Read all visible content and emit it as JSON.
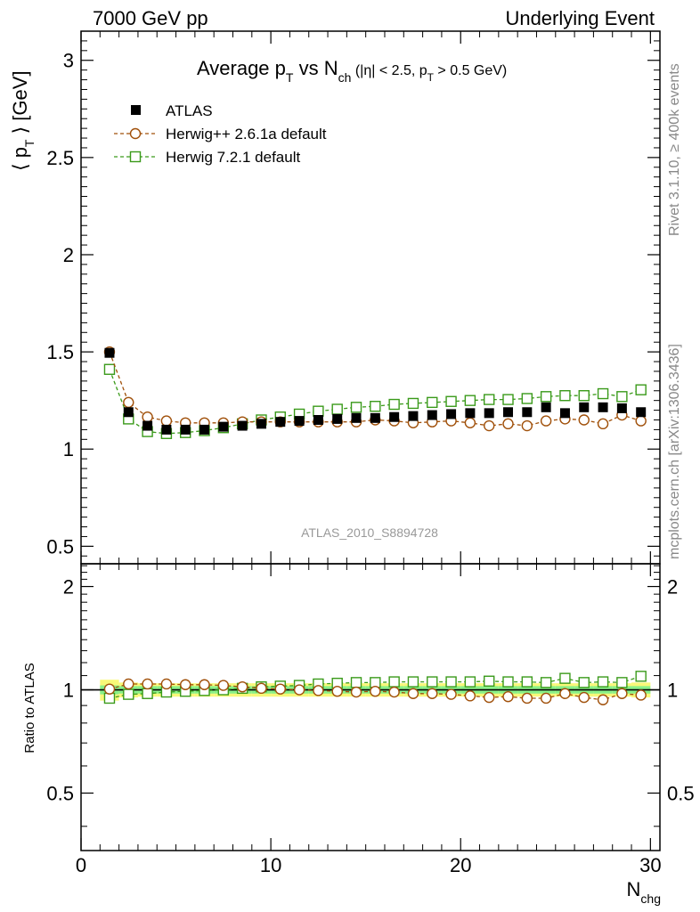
{
  "header": {
    "left": "7000 GeV pp",
    "right": "Underlying Event"
  },
  "side_labels": {
    "rivet": "Rivet 3.1.10, ≥ 400k events",
    "mcplots": "mcplots.cern.ch [arXiv:1306.3436]"
  },
  "watermark": "ATLAS_2010_S8894728",
  "colors": {
    "atlas": "#000000",
    "herwigpp": "#a0500a",
    "herwig7": "#3a9a1a",
    "band_inner": "#88f088",
    "band_outer": "#f8f878"
  },
  "chart_data": [
    {
      "type": "scatter",
      "title": "Average p_T vs N_ch (|η| < 2.5, p_T > 0.5 GeV)",
      "title_parts": {
        "a": "Average p",
        "a_sub": "T",
        "b": " vs N",
        "b_sub": "ch",
        "c": " (|η| < 2.5, p",
        "c_sub": "T",
        "d": " > 0.5 GeV)"
      },
      "ylabel_parts": {
        "open": "⟨ p",
        "sub": "T",
        "close": " ⟩ [GeV]"
      },
      "xlim": [
        0,
        30.5
      ],
      "ylim": [
        0.41,
        3.15
      ],
      "y_ticks": [
        0.5,
        1,
        1.5,
        2,
        2.5,
        3
      ],
      "y_tick_labels": [
        "0.5",
        "1",
        "1.5",
        "2",
        "2.5",
        "3"
      ],
      "legend_position": "top-left",
      "x": [
        1.5,
        2.5,
        3.5,
        4.5,
        5.5,
        6.5,
        7.5,
        8.5,
        9.5,
        10.5,
        11.5,
        12.5,
        13.5,
        14.5,
        15.5,
        16.5,
        17.5,
        18.5,
        19.5,
        20.5,
        21.5,
        22.5,
        23.5,
        24.5,
        25.5,
        26.5,
        27.5,
        28.5,
        29.5
      ],
      "series": [
        {
          "name": "ATLAS",
          "marker": "filled-square",
          "values": [
            1.495,
            1.19,
            1.12,
            1.1,
            1.1,
            1.1,
            1.115,
            1.12,
            1.13,
            1.14,
            1.145,
            1.15,
            1.155,
            1.16,
            1.16,
            1.165,
            1.17,
            1.175,
            1.18,
            1.185,
            1.185,
            1.19,
            1.19,
            1.215,
            1.185,
            1.215,
            1.215,
            1.21,
            1.19
          ]
        },
        {
          "name": "Herwig++ 2.6.1a default",
          "marker": "open-circle",
          "values": [
            1.5,
            1.24,
            1.165,
            1.145,
            1.135,
            1.135,
            1.135,
            1.14,
            1.14,
            1.14,
            1.14,
            1.14,
            1.14,
            1.14,
            1.15,
            1.145,
            1.135,
            1.14,
            1.145,
            1.135,
            1.12,
            1.13,
            1.12,
            1.145,
            1.155,
            1.15,
            1.13,
            1.175,
            1.145
          ]
        },
        {
          "name": "Herwig 7.2.1 default",
          "marker": "open-square",
          "values": [
            1.41,
            1.155,
            1.09,
            1.08,
            1.085,
            1.095,
            1.11,
            1.13,
            1.15,
            1.165,
            1.18,
            1.195,
            1.205,
            1.215,
            1.22,
            1.23,
            1.235,
            1.24,
            1.245,
            1.25,
            1.255,
            1.255,
            1.26,
            1.27,
            1.275,
            1.275,
            1.285,
            1.27,
            1.305
          ]
        }
      ]
    },
    {
      "type": "scatter",
      "ylabel": "Ratio to ATLAS",
      "xlabel_parts": {
        "main": "N",
        "sub": "chg"
      },
      "xlim": [
        0,
        30.5
      ],
      "ylim": [
        0.34,
        2.33
      ],
      "x_ticks": [
        0,
        10,
        20,
        30
      ],
      "x_tick_labels": [
        "0",
        "10",
        "20",
        "30"
      ],
      "y_ticks": [
        0.5,
        1,
        2
      ],
      "y_tick_labels": [
        "0.5",
        "1",
        "2"
      ],
      "x": [
        1.5,
        2.5,
        3.5,
        4.5,
        5.5,
        6.5,
        7.5,
        8.5,
        9.5,
        10.5,
        11.5,
        12.5,
        13.5,
        14.5,
        15.5,
        16.5,
        17.5,
        18.5,
        19.5,
        20.5,
        21.5,
        22.5,
        23.5,
        24.5,
        25.5,
        26.5,
        27.5,
        28.5,
        29.5
      ],
      "band_inner_halfwidth": [
        0.03,
        0.025,
        0.025,
        0.025,
        0.025,
        0.025,
        0.025,
        0.025,
        0.025,
        0.025,
        0.025,
        0.025,
        0.025,
        0.025,
        0.025,
        0.025,
        0.025,
        0.025,
        0.025,
        0.025,
        0.025,
        0.025,
        0.025,
        0.025,
        0.025,
        0.025,
        0.025,
        0.025,
        0.025
      ],
      "band_outer_halfwidth": [
        0.07,
        0.05,
        0.045,
        0.045,
        0.045,
        0.045,
        0.045,
        0.045,
        0.045,
        0.045,
        0.045,
        0.045,
        0.045,
        0.045,
        0.045,
        0.045,
        0.045,
        0.045,
        0.045,
        0.045,
        0.045,
        0.045,
        0.045,
        0.045,
        0.045,
        0.045,
        0.045,
        0.045,
        0.05
      ],
      "series": [
        {
          "name": "Herwig++ 2.6.1a default",
          "marker": "open-circle",
          "values": [
            1.005,
            1.04,
            1.04,
            1.04,
            1.035,
            1.035,
            1.03,
            1.02,
            1.01,
            1.005,
            1.0,
            0.995,
            0.99,
            0.985,
            0.99,
            0.985,
            0.975,
            0.975,
            0.97,
            0.96,
            0.95,
            0.955,
            0.945,
            0.945,
            0.975,
            0.95,
            0.935,
            0.975,
            0.965
          ]
        },
        {
          "name": "Herwig 7.2.1 default",
          "marker": "open-square",
          "values": [
            0.945,
            0.97,
            0.975,
            0.985,
            0.99,
            0.995,
            1.0,
            1.01,
            1.02,
            1.025,
            1.03,
            1.04,
            1.045,
            1.05,
            1.05,
            1.055,
            1.055,
            1.055,
            1.055,
            1.055,
            1.06,
            1.055,
            1.055,
            1.05,
            1.08,
            1.05,
            1.055,
            1.05,
            1.095
          ]
        }
      ]
    }
  ]
}
